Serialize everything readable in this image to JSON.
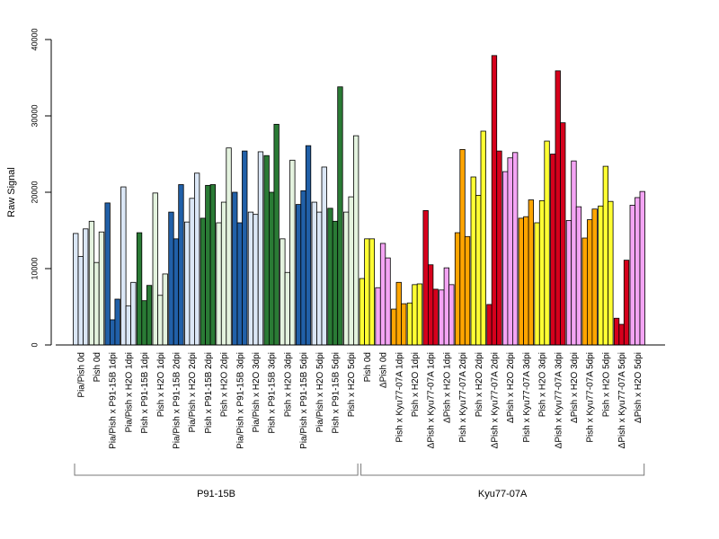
{
  "chart_data": {
    "type": "bar",
    "ylabel": "Raw Signal",
    "ylim": [
      0,
      40000
    ],
    "yticks": [
      0,
      10000,
      20000,
      30000,
      40000
    ],
    "grid": false,
    "categories": [
      "Pia/Pish 0d",
      "Pish 0d",
      "Pia/Pish x P91-15B 1dpi",
      "Pia/Pish x H2O 1dpi",
      "Pish x P91-15B 1dpi",
      "Pish x H2O 1dpi",
      "Pia/Pish x P91-15B 2dpi",
      "Pia/Pish x H2O 2dpi",
      "Pish x P91-15B 2dpi",
      "Pish x H2O 2dpi",
      "Pia/Pish x P91-15B 3dpi",
      "Pia/Pish x H2O 3dpi",
      "Pish x P91-15B 3dpi",
      "Pish x H2O 3dpi",
      "Pia/Pish x P91-15B 5dpi",
      "Pia/Pish x H2O 5dpi",
      "Pish x P91-15B 5dpi",
      "Pish x H2O 5dpi",
      "Pish 0d",
      "ΔPish 0d",
      "Pish x Kyu77-07A 1dpi",
      "Pish x H2O 1dpi",
      "ΔPish x Kyu77-07A 1dpi",
      "ΔPish x H2O 1dpi",
      "Pish x Kyu77-07A 2dpi",
      "Pish x H2O 2dpi",
      "ΔPish x Kyu77-07A 2dpi",
      "ΔPish x H2O 2dpi",
      "Pish x Kyu77-07A 3dpi",
      "Pish x H2O 3dpi",
      "ΔPish x Kyu77-07A 3dpi",
      "ΔPish x H2O 3dpi",
      "Pish x Kyu77-07A 5dpi",
      "Pish x H2O 5dpi",
      "ΔPish x Kyu77-07A 5dpi",
      "ΔPish x H2O 5dpi"
    ],
    "values": [
      [
        14600,
        11600,
        15200
      ],
      [
        16200,
        10800,
        14800
      ],
      [
        18600,
        3300,
        6000
      ],
      [
        20700,
        5100,
        8200
      ],
      [
        14700,
        5800,
        7800
      ],
      [
        19900,
        6500,
        9300
      ],
      [
        17400,
        13900,
        21000
      ],
      [
        16100,
        19200,
        22500
      ],
      [
        16600,
        20900,
        21000
      ],
      [
        16000,
        18700,
        25800
      ],
      [
        20000,
        16000,
        25400
      ],
      [
        17400,
        17100,
        25300
      ],
      [
        24800,
        20000,
        28900
      ],
      [
        13900,
        9500,
        24200
      ],
      [
        18400,
        20200,
        26100
      ],
      [
        18700,
        17400,
        23300
      ],
      [
        17900,
        16200,
        33800
      ],
      [
        17400,
        19400,
        27400
      ],
      [
        8700,
        13900,
        13900
      ],
      [
        7500,
        13300,
        11400
      ],
      [
        4700,
        8200,
        5400
      ],
      [
        5500,
        7900,
        8000
      ],
      [
        17600,
        10500,
        7300
      ],
      [
        7200,
        10100,
        7900
      ],
      [
        14700,
        25600,
        14200
      ],
      [
        22000,
        19600,
        28000
      ],
      [
        5300,
        37900,
        25400
      ],
      [
        22700,
        24500,
        25200
      ],
      [
        16600,
        16800,
        19000
      ],
      [
        16000,
        18900,
        26700
      ],
      [
        25000,
        35900,
        29100
      ],
      [
        16300,
        24100,
        18100
      ],
      [
        14000,
        16400,
        17800
      ],
      [
        18200,
        23400,
        18800
      ],
      [
        3500,
        2700,
        11100
      ],
      [
        18300,
        19300,
        20100
      ]
    ],
    "bar_colors": [
      "#dbe7f6",
      "#e4f3df",
      "#2160a8",
      "#dbe7f6",
      "#2a7b35",
      "#e4f3df",
      "#2160a8",
      "#dbe7f6",
      "#2a7b35",
      "#e4f3df",
      "#2160a8",
      "#dbe7f6",
      "#2a7b35",
      "#e4f3df",
      "#2160a8",
      "#dbe7f6",
      "#2a7b35",
      "#e4f3df",
      "#ffff33",
      "#f4a4f4",
      "#ffa500",
      "#ffff33",
      "#d6001c",
      "#f4a4f4",
      "#ffa500",
      "#ffff33",
      "#d6001c",
      "#f4a4f4",
      "#ffa500",
      "#ffff33",
      "#d6001c",
      "#f4a4f4",
      "#ffa500",
      "#ffff33",
      "#d6001c",
      "#f4a4f4"
    ],
    "groups": [
      {
        "label": "P91-15B",
        "start_index": 0,
        "end_index": 17
      },
      {
        "label": "Kyu77-07A",
        "start_index": 18,
        "end_index": 35
      }
    ]
  }
}
